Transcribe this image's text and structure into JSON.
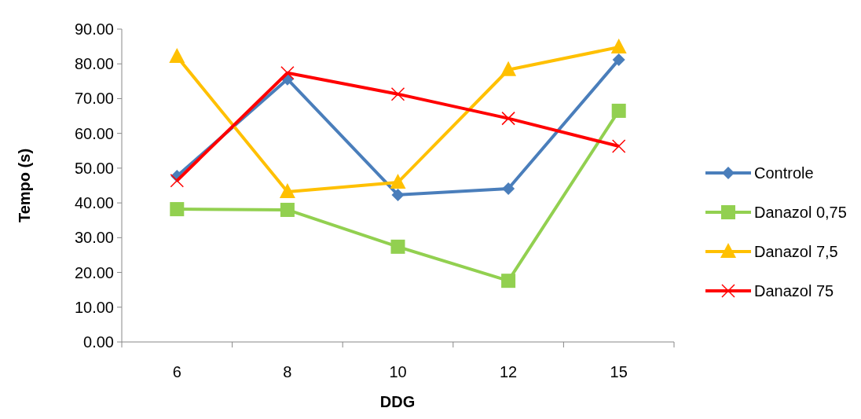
{
  "chart_data": {
    "type": "line",
    "xlabel": "DDG",
    "ylabel": "Tempo (s)",
    "categories": [
      "6",
      "8",
      "10",
      "12",
      "15"
    ],
    "series": [
      {
        "name": "Controle",
        "color": "#4a7ebb",
        "marker": "diamond",
        "values": [
          47.7,
          75.6,
          42.3,
          44.1,
          81.2
        ]
      },
      {
        "name": "Danazol 0,75",
        "color": "#92d050",
        "marker": "square",
        "values": [
          38.2,
          38.0,
          27.4,
          17.6,
          66.5
        ]
      },
      {
        "name": "Danazol 7,5",
        "color": "#ffc000",
        "marker": "triangle",
        "values": [
          82.1,
          43.2,
          45.9,
          78.3,
          84.8
        ]
      },
      {
        "name": "Danazol 75",
        "color": "#ff0000",
        "marker": "cross",
        "values": [
          46.4,
          77.4,
          71.3,
          64.3,
          56.3
        ]
      }
    ],
    "ylim": [
      0,
      90
    ],
    "yticks": [
      {
        "value": 0,
        "label": "0.00"
      },
      {
        "value": 10,
        "label": "10.00"
      },
      {
        "value": 20,
        "label": "20.00"
      },
      {
        "value": 30,
        "label": "30.00"
      },
      {
        "value": 40,
        "label": "40.00"
      },
      {
        "value": 50,
        "label": "50.00"
      },
      {
        "value": 60,
        "label": "60.00"
      },
      {
        "value": 70,
        "label": "70.00"
      },
      {
        "value": 80,
        "label": "80.00"
      },
      {
        "value": 90,
        "label": "90.00"
      }
    ],
    "grid": false,
    "legend": "right",
    "line_style": "solid"
  }
}
